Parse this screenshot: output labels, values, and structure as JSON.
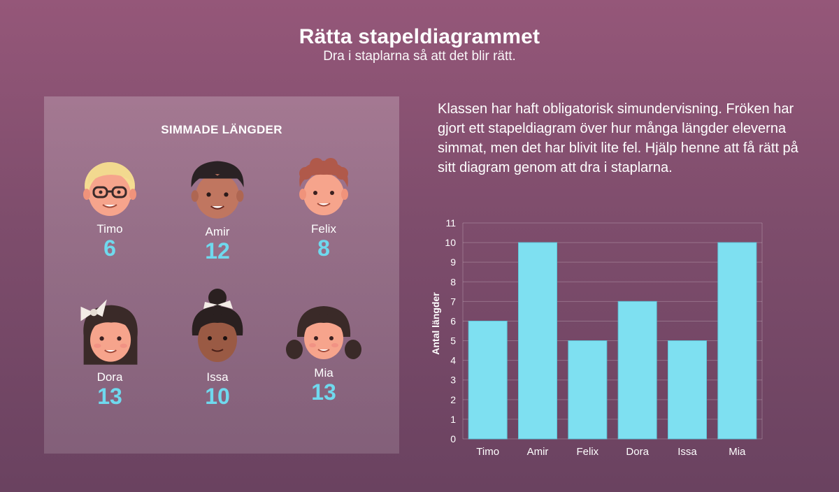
{
  "header": {
    "title": "Rätta stapeldiagrammet",
    "subtitle": "Dra i staplarna så att det blir rätt."
  },
  "panel": {
    "title": "SIMMADE LÄNGDER",
    "kids": [
      {
        "name": "Timo",
        "laps": "6",
        "icon": "blond-boy-with-glasses-avatar"
      },
      {
        "name": "Amir",
        "laps": "12",
        "icon": "dark-haired-boy-avatar"
      },
      {
        "name": "Felix",
        "laps": "8",
        "icon": "curly-red-haired-boy-avatar"
      },
      {
        "name": "Dora",
        "laps": "13",
        "icon": "girl-with-bow-avatar"
      },
      {
        "name": "Issa",
        "laps": "10",
        "icon": "girl-with-bun-avatar"
      },
      {
        "name": "Mia",
        "laps": "13",
        "icon": "girl-with-pigtails-avatar"
      }
    ]
  },
  "description": "Klassen har haft obligatorisk simundervisning. Fröken har gjort ett stapeldiagram över hur många längder eleverna simmat, men det har blivit lite fel. Hjälp henne att få rätt på sitt diagram genom att dra i staplarna.",
  "colors": {
    "accent": "#6fd9ee",
    "bar": "#7ee0f1"
  },
  "chart_data": {
    "type": "bar",
    "categories": [
      "Timo",
      "Amir",
      "Felix",
      "Dora",
      "Issa",
      "Mia"
    ],
    "values": [
      6,
      10,
      5,
      7,
      5,
      10
    ],
    "ylabel": "Antal  längder",
    "xlabel": "",
    "ylim": [
      0,
      11
    ],
    "yticks": [
      0,
      1,
      2,
      3,
      4,
      5,
      6,
      7,
      8,
      9,
      10,
      11
    ],
    "grid": true
  }
}
